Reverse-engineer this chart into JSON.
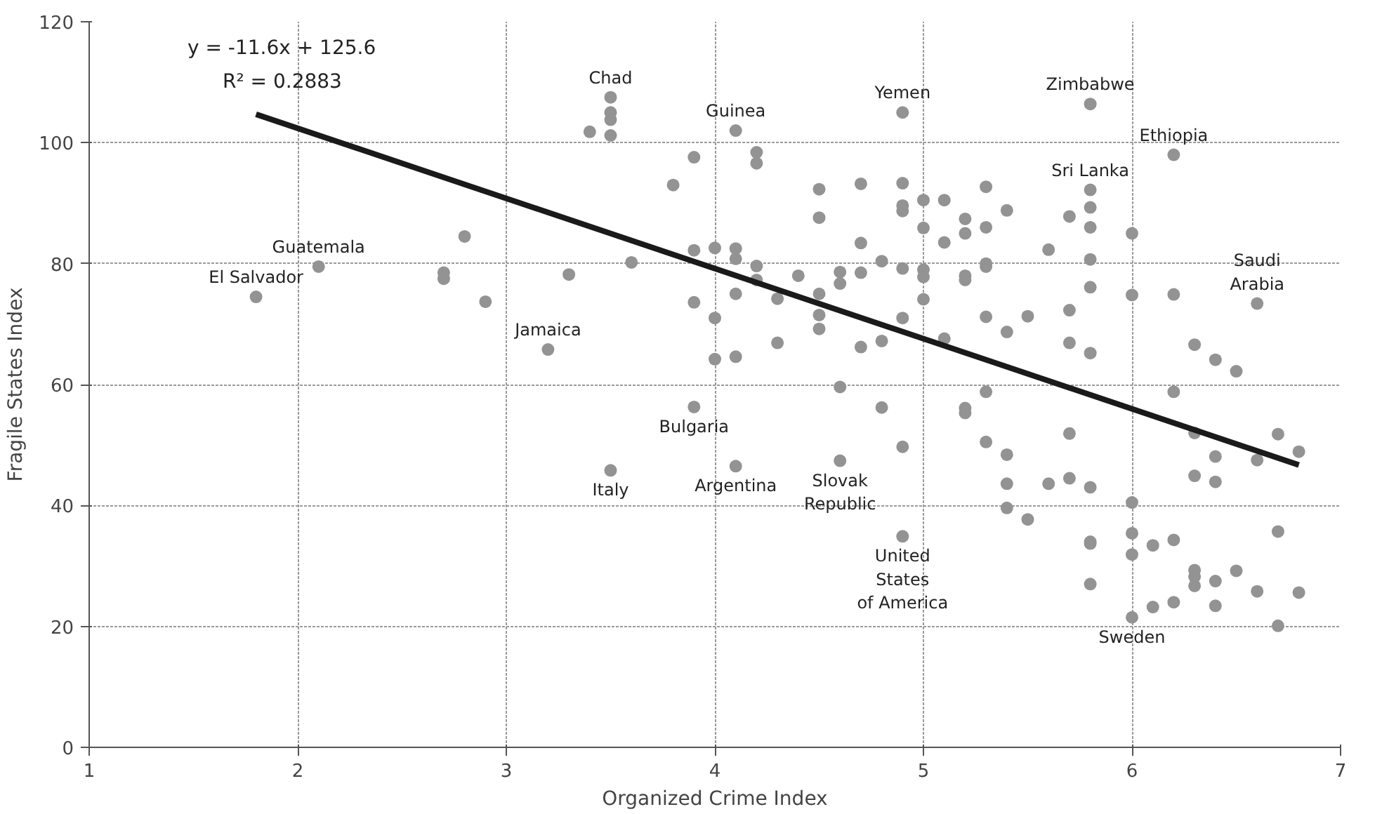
{
  "chart_data": {
    "type": "scatter",
    "xlabel": "Organized Crime Index",
    "ylabel": "Fragile States Index",
    "xlim": [
      1,
      7
    ],
    "xticks": [
      1,
      2,
      3,
      4,
      5,
      6,
      7
    ],
    "ylim": [
      0,
      120
    ],
    "yticks": [
      0,
      20,
      40,
      60,
      80,
      100,
      120
    ],
    "grid": true,
    "series": [
      {
        "marker": "circle",
        "color": "#939393",
        "x": [
          1.8,
          2.1,
          2.7,
          2.7,
          2.8,
          2.9,
          3.2,
          3.3,
          3.4,
          3.5,
          3.5,
          3.5,
          3.5,
          3.5,
          3.6,
          3.8,
          3.9,
          3.9,
          3.9,
          3.9,
          4.0,
          4.0,
          4.0,
          4.1,
          4.1,
          4.1,
          4.1,
          4.1,
          4.1,
          4.2,
          4.2,
          4.2,
          4.2,
          4.3,
          4.3,
          4.4,
          4.5,
          4.5,
          4.5,
          4.5,
          4.5,
          4.6,
          4.6,
          4.6,
          4.6,
          4.7,
          4.7,
          4.7,
          4.7,
          4.8,
          4.8,
          4.8,
          4.9,
          4.9,
          4.9,
          4.9,
          4.9,
          4.9,
          4.9,
          4.9,
          5.0,
          5.0,
          5.0,
          5.0,
          5.0,
          5.1,
          5.1,
          5.1,
          5.2,
          5.2,
          5.2,
          5.2,
          5.2,
          5.2,
          5.3,
          5.3,
          5.3,
          5.3,
          5.3,
          5.3,
          5.3,
          5.4,
          5.4,
          5.4,
          5.4,
          5.4,
          5.5,
          5.5,
          5.6,
          5.6,
          5.7,
          5.7,
          5.7,
          5.7,
          5.7,
          5.8,
          5.8,
          5.8,
          5.8,
          5.8,
          5.8,
          5.8,
          5.8,
          5.8,
          5.8,
          5.8,
          6.0,
          6.0,
          6.0,
          6.0,
          6.0,
          6.0,
          6.1,
          6.1,
          6.2,
          6.2,
          6.2,
          6.2,
          6.2,
          6.3,
          6.3,
          6.3,
          6.3,
          6.3,
          6.3,
          6.4,
          6.4,
          6.4,
          6.4,
          6.4,
          6.5,
          6.5,
          6.6,
          6.6,
          6.6,
          6.7,
          6.7,
          6.7,
          6.8,
          6.8
        ],
        "values": [
          74.5,
          79.5,
          78.5,
          77.5,
          84.5,
          73.7,
          65.8,
          78.2,
          101.8,
          107.5,
          105,
          103.8,
          101.2,
          45.8,
          80.2,
          93,
          97.6,
          82.2,
          73.6,
          56.3,
          82.6,
          71,
          64.2,
          102,
          82.5,
          80.8,
          75,
          64.6,
          46.5,
          98.4,
          96.6,
          79.6,
          77.3,
          74.2,
          66.9,
          78,
          92.3,
          87.6,
          75,
          71.5,
          69.2,
          78.6,
          76.7,
          59.6,
          47.4,
          93.2,
          83.4,
          78.5,
          66.2,
          80.4,
          67.2,
          56.2,
          105,
          93.3,
          89.6,
          88.7,
          79.2,
          71,
          49.7,
          34.9,
          90.5,
          85.9,
          79,
          77.8,
          74.1,
          90.5,
          83.5,
          67.6,
          87.4,
          85,
          78,
          77.3,
          56.1,
          55.3,
          92.7,
          86,
          80,
          79.5,
          71.2,
          58.8,
          50.5,
          88.8,
          68.7,
          48.4,
          43.6,
          39.6,
          71.3,
          37.7,
          82.3,
          43.6,
          87.8,
          72.3,
          66.9,
          51.9,
          44.5,
          106.4,
          92.2,
          89.3,
          86,
          80.7,
          76.1,
          65.2,
          43,
          34,
          33.7,
          27,
          85,
          74.8,
          40.5,
          35.4,
          31.9,
          21.5,
          33.4,
          23.2,
          98,
          74.9,
          58.8,
          34.3,
          24,
          66.6,
          52,
          44.9,
          29.3,
          28.2,
          26.7,
          64.1,
          48.1,
          43.9,
          27.5,
          23.4,
          62.2,
          29.2,
          73.4,
          47.5,
          25.8,
          51.8,
          35.7,
          20.1,
          48.9,
          25.6
        ]
      },
      {
        "type": "line",
        "color": "#1a1a1a",
        "x": [
          1.8,
          6.8
        ],
        "values": [
          104.7,
          46.7
        ],
        "marker": "none"
      }
    ],
    "annotations": [
      "y = -11.6x + 125.6",
      "R² = 0.2883",
      {
        "text": "El Salvador",
        "x": 1.8,
        "y": 74.5
      },
      {
        "text": "Guatemala",
        "x": 2.1,
        "y": 79.5
      },
      {
        "text": "Jamaica",
        "x": 3.2,
        "y": 65.8
      },
      {
        "text": "Chad",
        "x": 3.5,
        "y": 107.5
      },
      {
        "text": "Italy",
        "x": 3.5,
        "y": 45.8
      },
      {
        "text": "Bulgaria",
        "x": 3.9,
        "y": 56.3
      },
      {
        "text": "Guinea",
        "x": 4.1,
        "y": 102
      },
      {
        "text": "Argentina",
        "x": 4.1,
        "y": 46.5
      },
      {
        "text": "Slovak\nRepublic",
        "x": 4.6,
        "y": 47.4
      },
      {
        "text": "Yemen",
        "x": 4.9,
        "y": 105
      },
      {
        "text": "United\nStates\nof America",
        "x": 4.9,
        "y": 34.9
      },
      {
        "text": "Zimbabwe",
        "x": 5.8,
        "y": 106.4
      },
      {
        "text": "Sri Lanka",
        "x": 5.8,
        "y": 92.2
      },
      {
        "text": "Sweden",
        "x": 6.0,
        "y": 21.5
      },
      {
        "text": "Ethiopia",
        "x": 6.2,
        "y": 98
      },
      {
        "text": "Saudi\nArabia",
        "x": 6.6,
        "y": 73.4
      }
    ]
  }
}
